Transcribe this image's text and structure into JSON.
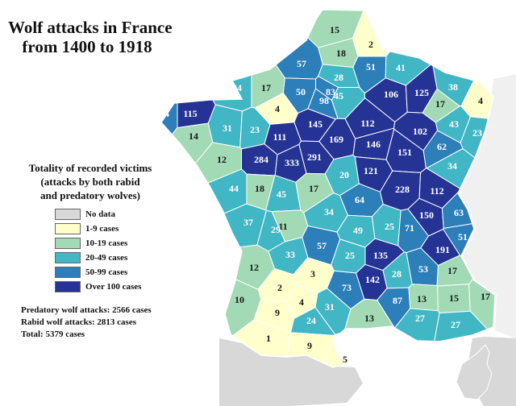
{
  "title": {
    "line1": "Wolf attacks in France",
    "line2": "from 1400 to 1918"
  },
  "legend": {
    "title_lines": [
      "Totality of recorded victims",
      "(attacks by both rabid",
      "and predatory wolves)"
    ],
    "items": [
      {
        "label": "No data",
        "color": "#d8d8d8"
      },
      {
        "label": "1-9 cases",
        "color": "#ffffcc"
      },
      {
        "label": "10-19 cases",
        "color": "#a1dab4"
      },
      {
        "label": "20-49 cases",
        "color": "#41b6c4"
      },
      {
        "label": "50-99 cases",
        "color": "#2c7fb8"
      },
      {
        "label": "Over 100 cases",
        "color": "#253494"
      }
    ]
  },
  "stats": {
    "predatory": "Predatory wolf attacks: 2566 cases",
    "rabid": "Rabid wolf attacks: 2813 cases",
    "total": "Total: 5379 cases"
  },
  "colors": {
    "no_data": "#d8d8d8",
    "c1_9": "#ffffcc",
    "c10_19": "#a1dab4",
    "c20_49": "#41b6c4",
    "c50_99": "#2c7fb8",
    "c100": "#253494",
    "border": "#ffffff"
  },
  "departments": [
    {
      "value": 15
    },
    {
      "value": 2
    },
    {
      "value": 18
    },
    {
      "value": 57
    },
    {
      "value": 51
    },
    {
      "value": 41
    },
    {
      "value": 28
    },
    {
      "value": 50
    },
    {
      "value": 38
    },
    {
      "value": 24
    },
    {
      "value": 17
    },
    {
      "value": 4
    },
    {
      "value": 98
    },
    {
      "value": 83
    },
    {
      "value": 45
    },
    {
      "value": 106
    },
    {
      "value": 125
    },
    {
      "value": 17
    },
    {
      "value": 4
    },
    {
      "value": 54
    },
    {
      "value": 115
    },
    {
      "value": 31
    },
    {
      "value": 23
    },
    {
      "value": 145
    },
    {
      "value": 112
    },
    {
      "value": 43
    },
    {
      "value": 14
    },
    {
      "value": 111
    },
    {
      "value": 169
    },
    {
      "value": 146
    },
    {
      "value": 102
    },
    {
      "value": 23
    },
    {
      "value": 62
    },
    {
      "value": 291
    },
    {
      "value": 151
    },
    {
      "value": 12
    },
    {
      "value": 284
    },
    {
      "value": 333
    },
    {
      "value": 20
    },
    {
      "value": 121
    },
    {
      "value": 34
    },
    {
      "value": 44
    },
    {
      "value": 18
    },
    {
      "value": 45
    },
    {
      "value": 17
    },
    {
      "value": 228
    },
    {
      "value": 112
    },
    {
      "value": 64
    },
    {
      "value": 34
    },
    {
      "value": 150
    },
    {
      "value": 63
    },
    {
      "value": 37
    },
    {
      "value": 11
    },
    {
      "value": 29
    },
    {
      "value": 49
    },
    {
      "value": 25
    },
    {
      "value": 71
    },
    {
      "value": 51
    },
    {
      "value": 57
    },
    {
      "value": 191
    },
    {
      "value": 33
    },
    {
      "value": 25
    },
    {
      "value": 135
    },
    {
      "value": 12
    },
    {
      "value": 17
    },
    {
      "value": 3
    },
    {
      "value": 28
    },
    {
      "value": 53
    },
    {
      "value": 142
    },
    {
      "value": 2
    },
    {
      "value": 73
    },
    {
      "value": 10
    },
    {
      "value": 4
    },
    {
      "value": 13
    },
    {
      "value": 15
    },
    {
      "value": 87
    },
    {
      "value": 17
    },
    {
      "value": 9
    },
    {
      "value": 31
    },
    {
      "value": 24
    },
    {
      "value": 13
    },
    {
      "value": 27
    },
    {
      "value": 27
    },
    {
      "value": 1
    },
    {
      "value": 9
    },
    {
      "value": 5
    }
  ]
}
